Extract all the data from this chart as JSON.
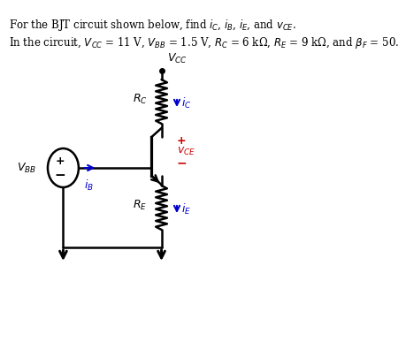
{
  "bg_color": "#ffffff",
  "text_color": "#000000",
  "blue_color": "#0000cc",
  "red_color": "#cc0000",
  "line1": "For the BJT circuit shown below, find $i_C$, $i_B$, $i_E$, and $v_{CE}$.",
  "line2": "In the circuit, $V_{CC}$ = 11 V, $V_{BB}$ = 1.5 V, $R_C$ = 6 kΩ, $R_E$ = 9 kΩ, and $\\beta_F$ = 50.",
  "Vcc_label": "$V_{CC}$",
  "Vbb_label": "$V_{BB}$",
  "Rc_label": "$R_C$",
  "Re_label": "$R_E$",
  "ic_label": "$i_C$",
  "ib_label": "$i_B$",
  "ie_label": "$i_E$",
  "vce_plus": "+",
  "vce_minus": "−",
  "vce_label": "$v_{CE}$"
}
